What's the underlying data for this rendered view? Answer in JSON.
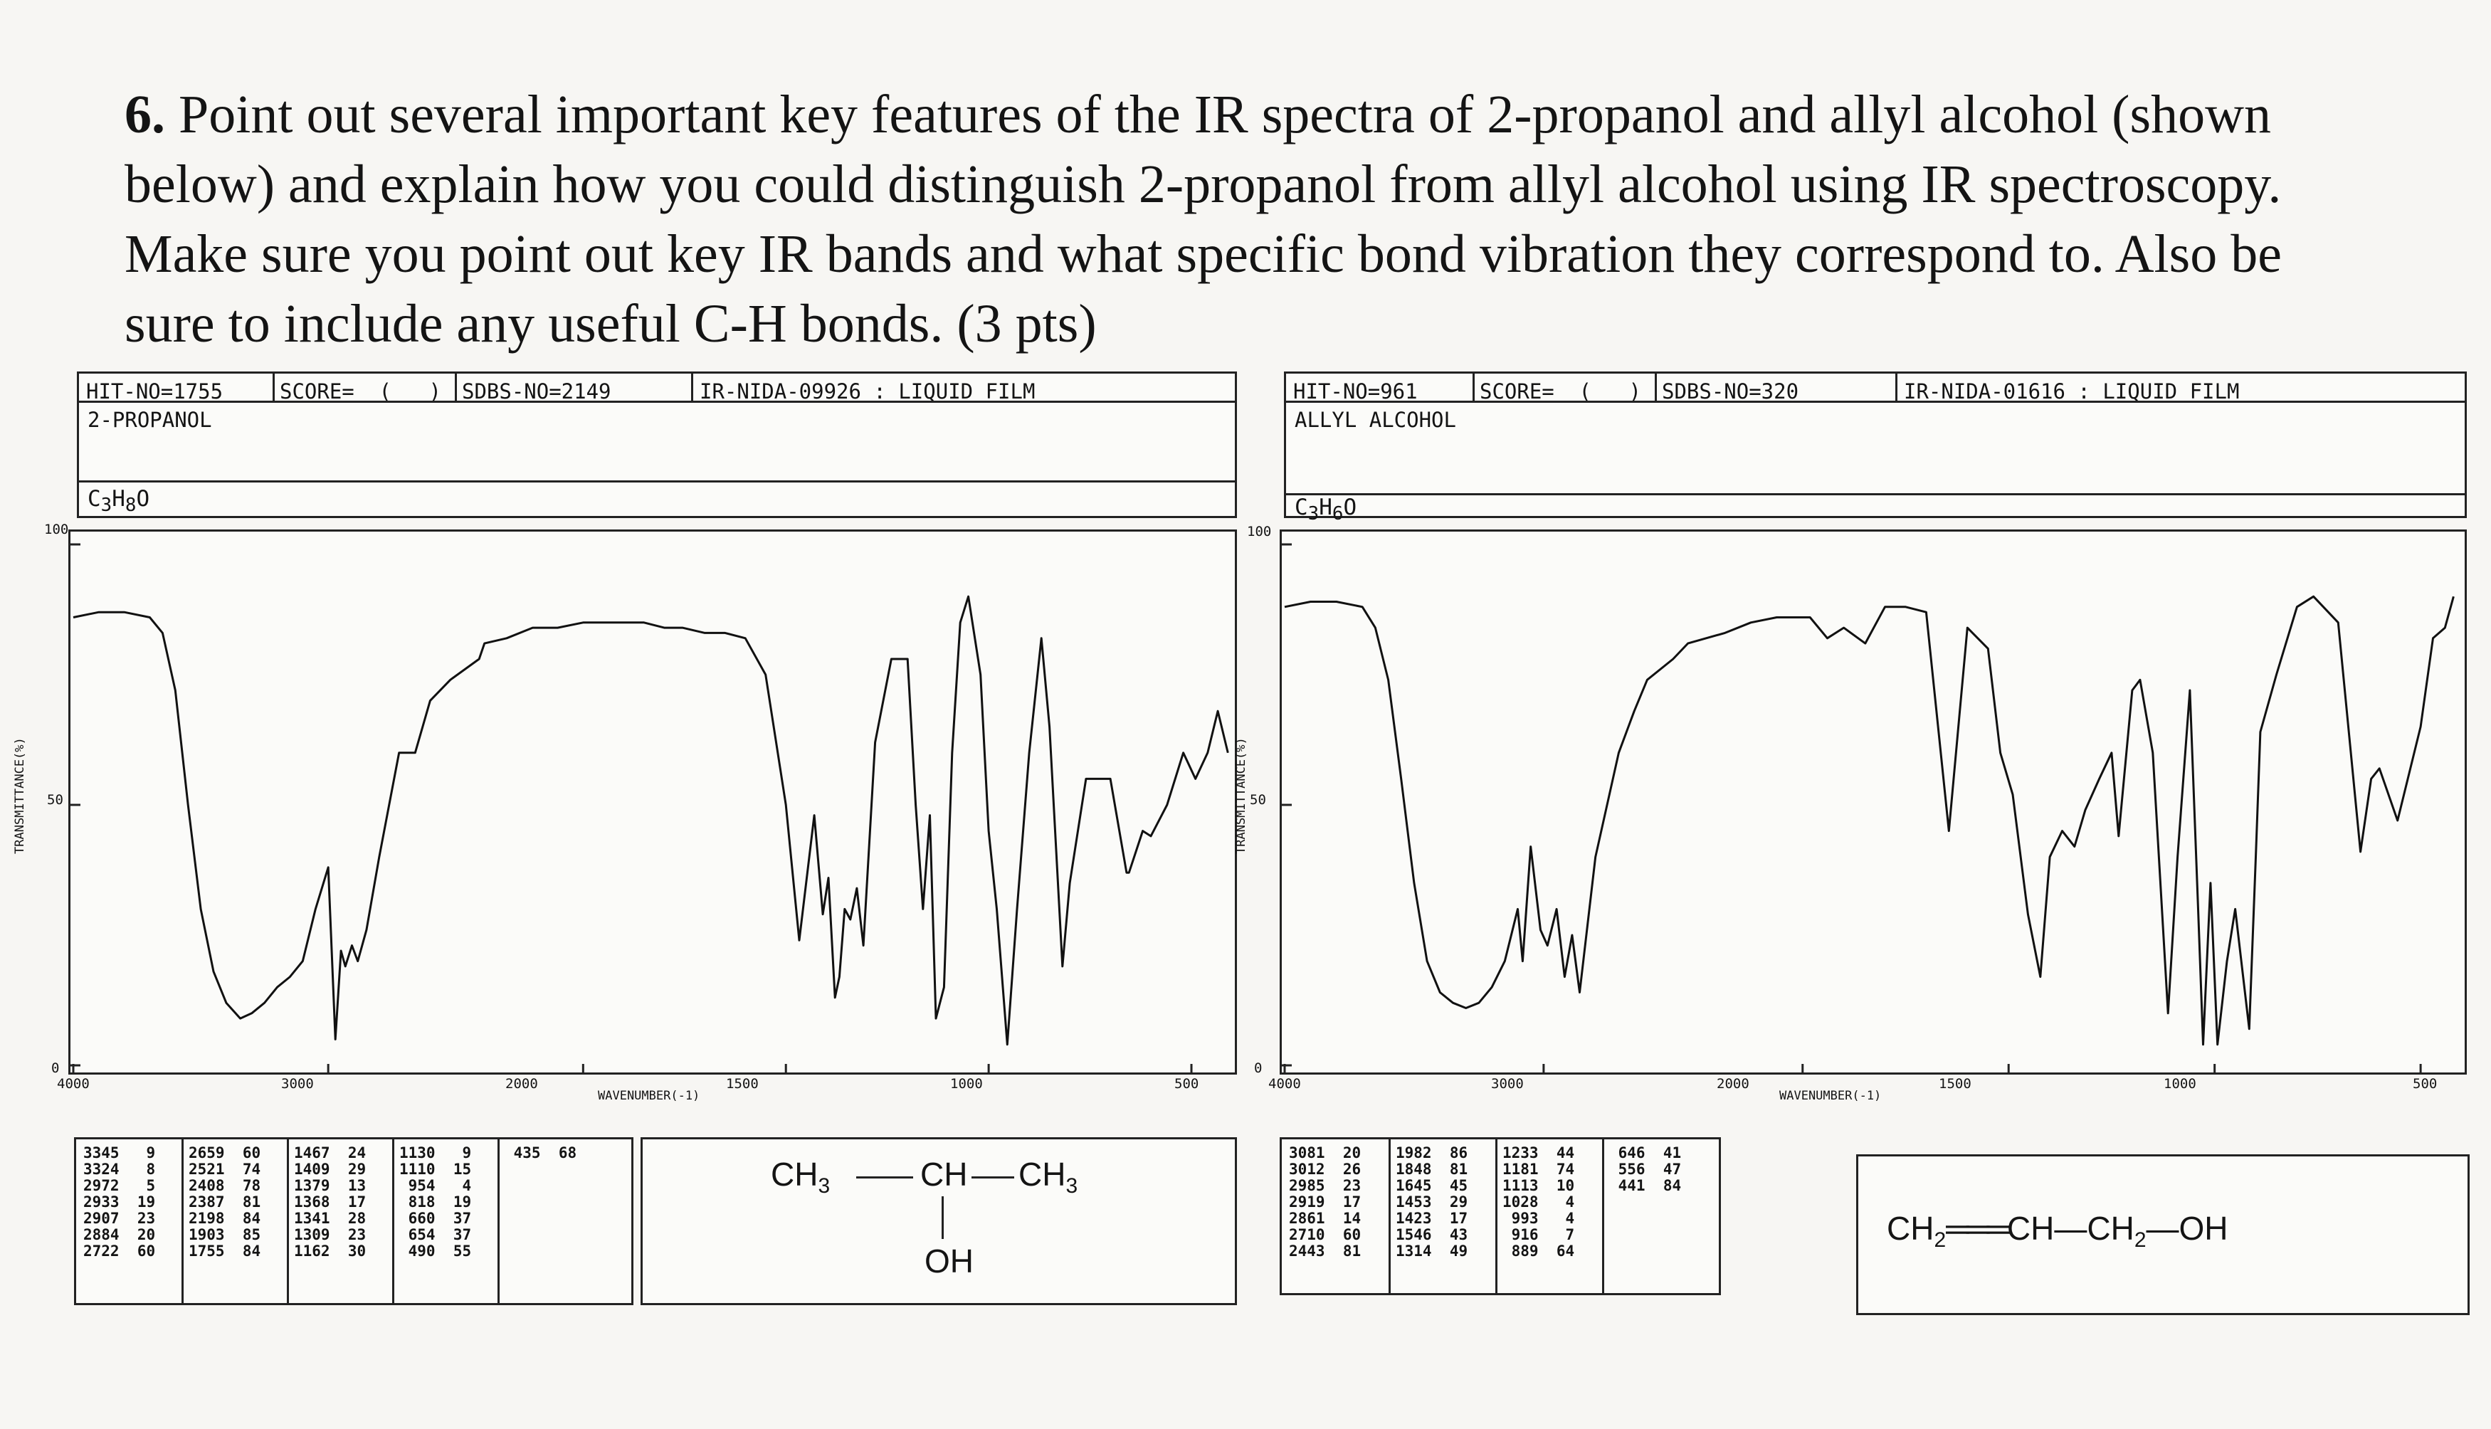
{
  "question": {
    "number": "6.",
    "text": "Point out several important key features of the IR spectra of 2-propanol and allyl alcohol (shown below) and explain how you could distinguish 2-propanol from allyl alcohol using IR spectroscopy. Make sure you point out key IR bands and what specific bond vibration they correspond to. Also be sure to include any useful C-H bonds. (3 pts)"
  },
  "spectra": [
    {
      "hit_no": "HIT-NO=1755",
      "score": "SCORE=  (   )",
      "sdbs_no": "SDBS-NO=2149",
      "nida": "IR-NIDA-09926 : LIQUID FILM",
      "compound": "2-PROPANOL",
      "formula": "C3H8O",
      "y_label": "TRANSMITTANCE(%)",
      "y_ticks": [
        "100",
        "50",
        "0"
      ],
      "x_ticks": [
        "4000",
        "3000",
        "2000",
        "1500",
        "1000",
        "500"
      ],
      "x_label": "WAVENUMBER(-1)",
      "peak_columns": [
        [
          [
            "3345",
            "9"
          ],
          [
            "3324",
            "8"
          ],
          [
            "2972",
            "5"
          ],
          [
            "2933",
            "19"
          ],
          [
            "2907",
            "23"
          ],
          [
            "2884",
            "20"
          ],
          [
            "2722",
            "60"
          ]
        ],
        [
          [
            "2659",
            "60"
          ],
          [
            "2521",
            "74"
          ],
          [
            "2408",
            "78"
          ],
          [
            "2387",
            "81"
          ],
          [
            "2198",
            "84"
          ],
          [
            "1903",
            "85"
          ],
          [
            "1755",
            "84"
          ]
        ],
        [
          [
            "1467",
            "24"
          ],
          [
            "1409",
            "29"
          ],
          [
            "1379",
            "13"
          ],
          [
            "1368",
            "17"
          ],
          [
            "1341",
            "28"
          ],
          [
            "1309",
            "23"
          ],
          [
            "1162",
            "30"
          ]
        ],
        [
          [
            "1130",
            "9"
          ],
          [
            "1110",
            "15"
          ],
          [
            "954",
            "4"
          ],
          [
            "818",
            "19"
          ],
          [
            "660",
            "37"
          ],
          [
            "654",
            "37"
          ],
          [
            "490",
            "55"
          ]
        ],
        [
          [
            "435",
            "68"
          ]
        ]
      ],
      "structure": {
        "left": "CH3",
        "middle": "CH",
        "right": "CH3",
        "substituent": "OH"
      }
    },
    {
      "hit_no": "HIT-NO=961",
      "score": "SCORE=  (   )",
      "sdbs_no": "SDBS-NO=320",
      "nida": "IR-NIDA-01616 : LIQUID FILM",
      "compound": "ALLYL ALCOHOL",
      "formula": "C3H6O",
      "y_label": "TRANSMITTANCE(%)",
      "y_ticks": [
        "100",
        "50",
        "0"
      ],
      "x_ticks": [
        "4000",
        "3000",
        "2000",
        "1500",
        "1000",
        "500"
      ],
      "x_label": "WAVENUMBER(-1)",
      "peak_columns": [
        [
          [
            "3081",
            "20"
          ],
          [
            "3012",
            "26"
          ],
          [
            "2985",
            "23"
          ],
          [
            "2919",
            "17"
          ],
          [
            "2861",
            "14"
          ],
          [
            "2710",
            "60"
          ],
          [
            "2443",
            "81"
          ]
        ],
        [
          [
            "1982",
            "86"
          ],
          [
            "1848",
            "81"
          ],
          [
            "1645",
            "45"
          ],
          [
            "1453",
            "29"
          ],
          [
            "1423",
            "17"
          ],
          [
            "1546",
            "43"
          ],
          [
            "1314",
            "49"
          ]
        ],
        [
          [
            "1233",
            "44"
          ],
          [
            "1181",
            "74"
          ],
          [
            "1113",
            "10"
          ],
          [
            "1028",
            "4"
          ],
          [
            "993",
            "4"
          ],
          [
            "916",
            "7"
          ],
          [
            "889",
            "64"
          ]
        ],
        [
          [
            "646",
            "41"
          ],
          [
            "556",
            "47"
          ],
          [
            "441",
            "84"
          ]
        ]
      ],
      "structure": {
        "text": "CH2=CH-CH2-OH"
      }
    }
  ],
  "chart_data": [
    {
      "type": "line",
      "title": "2-PROPANOL",
      "xlabel": "WAVENUMBER(-1)",
      "ylabel": "TRANSMITTANCE(%)",
      "xlim": [
        4000,
        400
      ],
      "ylim": [
        0,
        100
      ],
      "series": [
        {
          "x": [
            4000,
            3900,
            3800,
            3700,
            3650,
            3600,
            3550,
            3500,
            3450,
            3400,
            3345,
            3300,
            3250,
            3200,
            3150,
            3100,
            3050,
            3000,
            2972,
            2950,
            2933,
            2907,
            2884,
            2850,
            2800,
            2722,
            2659,
            2600,
            2521,
            2408,
            2387,
            2300,
            2198,
            2100,
            2000,
            1903,
            1850,
            1800,
            1755,
            1700,
            1650,
            1600,
            1550,
            1500,
            1467,
            1430,
            1409,
            1395,
            1379,
            1368,
            1355,
            1341,
            1325,
            1309,
            1280,
            1240,
            1200,
            1180,
            1162,
            1145,
            1130,
            1110,
            1090,
            1070,
            1050,
            1020,
            1000,
            980,
            954,
            930,
            900,
            870,
            850,
            818,
            800,
            760,
            700,
            660,
            654,
            620,
            600,
            560,
            520,
            490,
            460,
            435,
            410
          ],
          "y": [
            86,
            87,
            87,
            86,
            83,
            72,
            50,
            30,
            18,
            12,
            9,
            10,
            12,
            15,
            17,
            20,
            30,
            38,
            5,
            22,
            19,
            23,
            20,
            26,
            40,
            60,
            60,
            70,
            74,
            78,
            81,
            82,
            84,
            84,
            85,
            85,
            85,
            84,
            84,
            83,
            83,
            82,
            75,
            50,
            24,
            48,
            29,
            36,
            13,
            17,
            30,
            28,
            34,
            23,
            62,
            78,
            78,
            50,
            30,
            48,
            9,
            15,
            60,
            85,
            90,
            75,
            45,
            30,
            4,
            30,
            60,
            82,
            65,
            19,
            35,
            55,
            55,
            37,
            37,
            45,
            44,
            50,
            60,
            55,
            60,
            68,
            60
          ]
        }
      ]
    },
    {
      "type": "line",
      "title": "ALLYL ALCOHOL",
      "xlabel": "WAVENUMBER(-1)",
      "ylabel": "TRANSMITTANCE(%)",
      "xlim": [
        4000,
        400
      ],
      "ylim": [
        0,
        100
      ],
      "series": [
        {
          "x": [
            4000,
            3900,
            3800,
            3700,
            3650,
            3600,
            3550,
            3500,
            3450,
            3400,
            3350,
            3300,
            3250,
            3200,
            3150,
            3100,
            3081,
            3050,
            3012,
            2985,
            2950,
            2919,
            2890,
            2861,
            2800,
            2710,
            2650,
            2600,
            2500,
            2443,
            2300,
            2200,
            2100,
            2000,
            1982,
            1940,
            1900,
            1848,
            1800,
            1750,
            1700,
            1645,
            1600,
            1550,
            1520,
            1490,
            1453,
            1423,
            1400,
            1370,
            1340,
            1314,
            1280,
            1250,
            1233,
            1200,
            1181,
            1150,
            1113,
            1090,
            1060,
            1040,
            1028,
            1010,
            993,
            970,
            950,
            916,
            900,
            889,
            850,
            800,
            760,
            700,
            646,
            620,
            600,
            556,
            500,
            470,
            441,
            420
          ],
          "y": [
            88,
            89,
            89,
            88,
            84,
            74,
            55,
            35,
            20,
            14,
            12,
            11,
            12,
            15,
            20,
            30,
            20,
            42,
            26,
            23,
            30,
            17,
            25,
            14,
            40,
            60,
            68,
            74,
            78,
            81,
            83,
            85,
            86,
            86,
            86,
            82,
            84,
            81,
            88,
            88,
            87,
            45,
            84,
            80,
            60,
            52,
            29,
            17,
            40,
            45,
            42,
            49,
            55,
            60,
            44,
            72,
            74,
            60,
            10,
            40,
            72,
            30,
            4,
            35,
            4,
            20,
            30,
            7,
            40,
            64,
            75,
            88,
            90,
            85,
            41,
            55,
            57,
            47,
            65,
            82,
            84,
            90
          ]
        }
      ]
    }
  ]
}
